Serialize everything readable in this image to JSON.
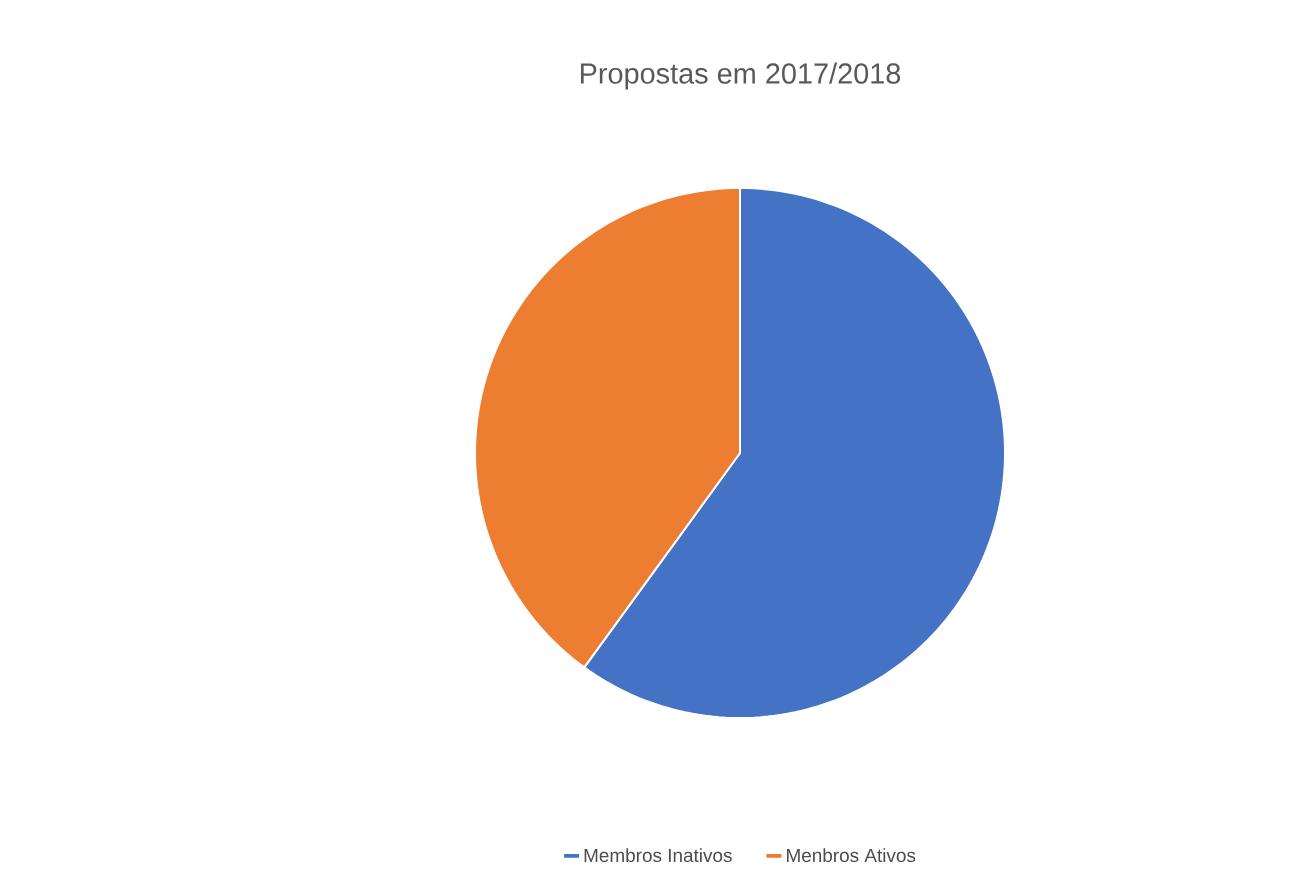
{
  "chart_data": {
    "type": "pie",
    "title": "Propostas em 2017/2018",
    "categories": [
      "Membros Inativos",
      "Menbros Ativos"
    ],
    "values": [
      60,
      40
    ],
    "colors": [
      "#4472c4",
      "#ed7d31"
    ],
    "legend": "bottom"
  }
}
